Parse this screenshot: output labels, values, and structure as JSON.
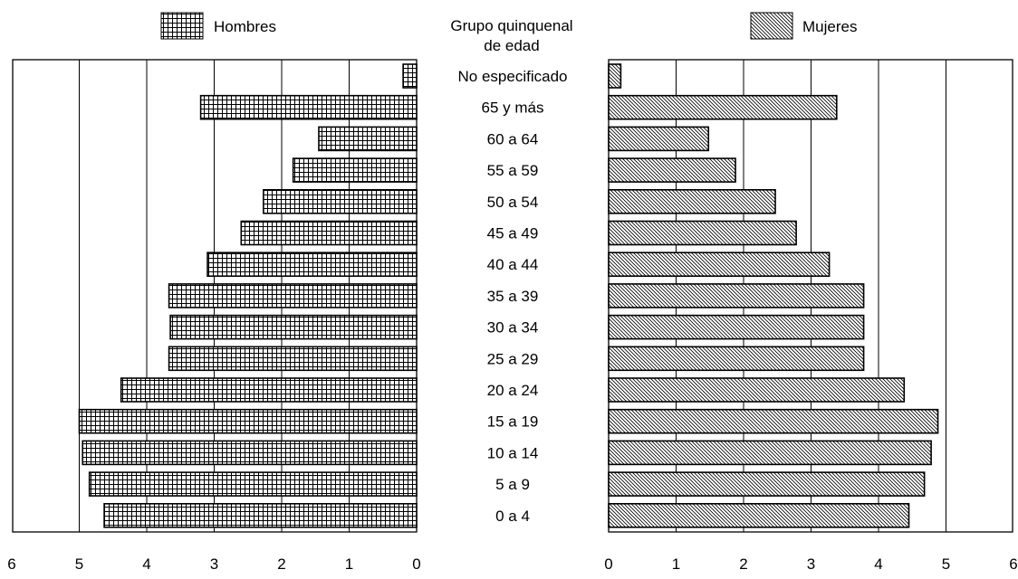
{
  "chart_data": {
    "type": "bar",
    "subtype": "population-pyramid",
    "center_header": [
      "Grupo quinquenal",
      "de edad"
    ],
    "legend": [
      {
        "label": "Hombres",
        "pattern": "grid"
      },
      {
        "label": "Mujeres",
        "pattern": "diagonal"
      }
    ],
    "categories": [
      "No especificado",
      "65 y más",
      "60 a 64",
      "55 a 59",
      "50 a 54",
      "45 a 49",
      "40 a 44",
      "35 a 39",
      "30 a 34",
      "25 a 29",
      "20 a 24",
      "15 a 19",
      "10 a 14",
      "5 a 9",
      "0 a 4"
    ],
    "series": [
      {
        "name": "Hombres",
        "side": "left",
        "values": [
          0.2,
          3.2,
          1.45,
          1.83,
          2.27,
          2.6,
          3.1,
          3.67,
          3.65,
          3.67,
          4.38,
          5.0,
          4.95,
          4.85,
          4.63
        ]
      },
      {
        "name": "Mujeres",
        "side": "right",
        "values": [
          0.18,
          3.38,
          1.48,
          1.88,
          2.47,
          2.78,
          3.27,
          3.78,
          3.78,
          3.78,
          4.38,
          4.88,
          4.78,
          4.68,
          4.45
        ]
      }
    ],
    "xlim": [
      0,
      6
    ],
    "xticks": [
      "0",
      "1",
      "2",
      "3",
      "4",
      "5",
      "6"
    ],
    "grid": "vertical",
    "legend_position": "top"
  }
}
